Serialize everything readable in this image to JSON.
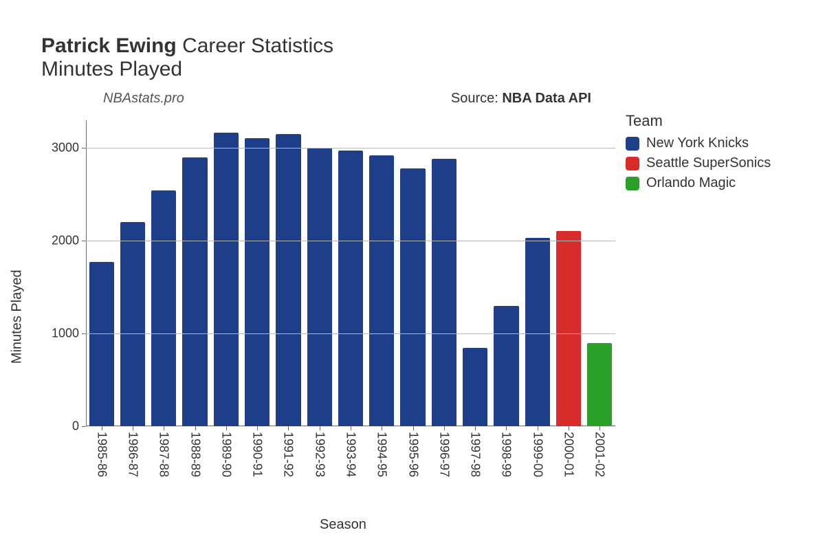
{
  "title": {
    "player_name": "Patrick Ewing",
    "rest": " Career Statistics",
    "metric": "Minutes Played"
  },
  "subheader": {
    "brand": "NBAstats.pro",
    "source_prefix": "Source: ",
    "source_name": "NBA Data API"
  },
  "chart": {
    "type": "bar",
    "x_axis_title": "Season",
    "y_axis_title": "Minutes Played",
    "background_color": "#ffffff",
    "grid_color": "#b8b8b8",
    "axis_color": "#666666",
    "text_color": "#333333",
    "ylim": [
      0,
      3300
    ],
    "y_ticks": [
      0,
      1000,
      2000,
      3000
    ],
    "bar_width_ratio": 0.8,
    "seasons": [
      "1985-86",
      "1986-87",
      "1987-88",
      "1988-89",
      "1989-90",
      "1990-91",
      "1991-92",
      "1992-93",
      "1993-94",
      "1994-95",
      "1995-96",
      "1996-97",
      "1997-98",
      "1998-99",
      "1999-00",
      "2000-01",
      "2001-02"
    ],
    "values": [
      1771,
      2206,
      2546,
      2896,
      3165,
      3104,
      3150,
      3003,
      2972,
      2920,
      2783,
      2887,
      848,
      1300,
      2035,
      2107,
      901
    ],
    "team_index": [
      0,
      0,
      0,
      0,
      0,
      0,
      0,
      0,
      0,
      0,
      0,
      0,
      0,
      0,
      0,
      1,
      2
    ],
    "teams": [
      {
        "name": "New York Knicks",
        "color": "#1f3e8a"
      },
      {
        "name": "Seattle SuperSonics",
        "color": "#d82c2c"
      },
      {
        "name": "Orlando Magic",
        "color": "#2aa02a"
      }
    ],
    "legend_title": "Team",
    "title_fontsize": 30,
    "axis_title_fontsize": 20,
    "tick_fontsize": 18,
    "legend_fontsize": 20
  }
}
